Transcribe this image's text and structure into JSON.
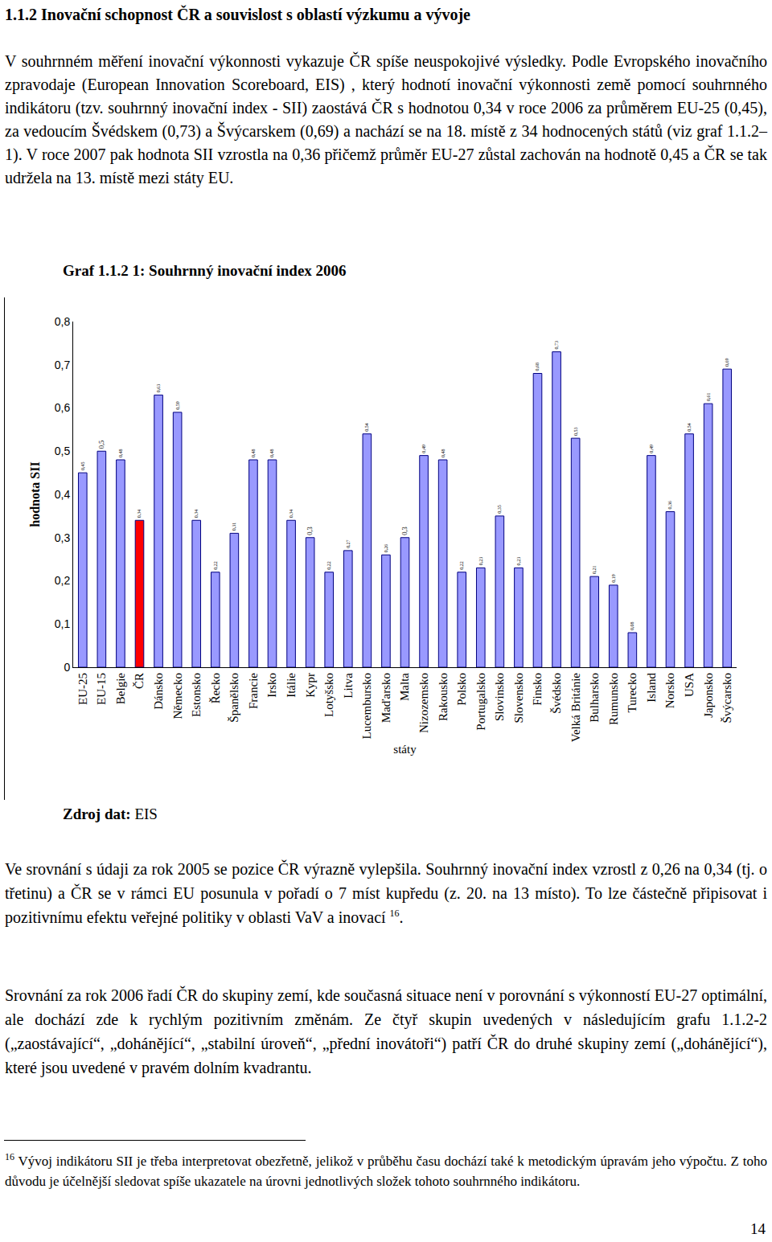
{
  "document": {
    "heading": "1.1.2 Inovační schopnost ČR a souvislost s oblastí výzkumu a vývoje",
    "paragraph_1": "V souhrnném měření inovační výkonnosti vykazuje ČR spíše neuspokojivé výsledky. Podle Evropského inovačního zpravodaje (European Innovation Scoreboard, EIS) , který hodnotí inovační výkonnosti země pomocí souhrnného indikátoru (tzv. souhrnný inovační index - SII) zaostává ČR s hodnotou 0,34 v roce 2006 za průměrem EU-25 (0,45), za vedoucím Švédskem (0,73) a Švýcarskem (0,69) a nachází se na 18. místě z 34 hodnocených států (viz graf 1.1.2– 1). V roce 2007 pak hodnota SII vzrostla na 0,36 přičemž průměr EU-27 zůstal zachován na hodnotě 0,45 a ČR se tak udržela na 13. místě mezi státy EU.",
    "source": {
      "label": "Zdroj dat:",
      "text": "EIS"
    },
    "paragraph_2": {
      "text": "Ve srovnání s údaji za rok 2005 se pozice ČR výrazně vylepšila. Souhrnný inovační index vzrostl z 0,26 na 0,34 (tj. o třetinu) a ČR se v rámci EU posunula v pořadí o 7 míst kupředu (z. 20. na 13 místo). To lze částečně připisovat i pozitivnímu efektu veřejné politiky v oblasti VaV a inovací",
      "footnote_ref": "16",
      "after": "."
    },
    "paragraph_3": "Srovnání za rok 2006 řadí ČR do skupiny zemí, kde současná situace není v porovnání s výkonností EU-27 optimální, ale dochází zde k rychlým pozitivním změnám. Ze čtyř skupin uvedených v následujícím grafu 1.1.2-2 („zaostávající“, „dohánějící“, „stabilní úroveň“, „přední inovátoři“) patří ČR do druhé skupiny zemí („dohánějící“), které jsou uvedené v pravém dolním kvadrantu.",
    "footnote": {
      "number": "16",
      "text": "Vývoj indikátoru SII je třeba interpretovat obezřetně, jelikož v průběhu času dochází také k metodickým úpravám jeho výpočtu. Z toho důvodu je účelnější sledovat spíše ukazatele na úrovni jednotlivých složek tohoto souhrnného indikátoru."
    },
    "page_number": "14"
  },
  "chart_data": {
    "type": "bar",
    "title": "Graf 1.1.2 1: Souhrnný inovační index 2006",
    "x_label": "státy",
    "y_label": "hodnota SII",
    "categories": [
      "EU-25",
      "EU-15",
      "Belgie",
      "ČR",
      "Dánsko",
      "Německo",
      "Estonsko",
      "Řecko",
      "Španělsko",
      "Francie",
      "Irsko",
      "Itálie",
      "Kypr",
      "Lotyšsko",
      "Litva",
      "Lucembursko",
      "Maďarsko",
      "Malta",
      "Nizozemsko",
      "Rakousko",
      "Polsko",
      "Portugalsko",
      "Slovinsko",
      "Slovensko",
      "Finsko",
      "Švédsko",
      "Velká Británie",
      "Bulharsko",
      "Rumunsko",
      "Turecko",
      "Island",
      "Norsko",
      "USA",
      "Japonsko",
      "Švýcarsko"
    ],
    "values": [
      0.45,
      0.5,
      0.48,
      0.34,
      0.63,
      0.59,
      0.34,
      0.22,
      0.31,
      0.48,
      0.48,
      0.34,
      0.3,
      0.22,
      0.27,
      0.54,
      0.26,
      0.3,
      0.49,
      0.48,
      0.22,
      0.23,
      0.35,
      0.23,
      0.68,
      0.73,
      0.53,
      0.21,
      0.19,
      0.08,
      0.49,
      0.36,
      0.54,
      0.61,
      0.69
    ],
    "value_labels": [
      "0,45",
      "0,5",
      "0,48",
      "0,34",
      "0,63",
      "0,59",
      "0,34",
      "0,22",
      "0,31",
      "0,48",
      "0,48",
      "0,34",
      "0,3",
      "0,22",
      "0,27",
      "0,54",
      "0,26",
      "0,3",
      "0,49",
      "0,48",
      "0,22",
      "0,23",
      "0,35",
      "0,23",
      "0,68",
      "0,73",
      "0,53",
      "0,21",
      "0,19",
      "0,08",
      "0,49",
      "0,36",
      "0,54",
      "0,61",
      "0,69"
    ],
    "colors": [
      "#9999ff",
      "#9999ff",
      "#9999ff",
      "#ff0000",
      "#9999ff",
      "#9999ff",
      "#9999ff",
      "#9999ff",
      "#9999ff",
      "#9999ff",
      "#9999ff",
      "#9999ff",
      "#9999ff",
      "#9999ff",
      "#9999ff",
      "#9999ff",
      "#9999ff",
      "#9999ff",
      "#9999ff",
      "#9999ff",
      "#9999ff",
      "#9999ff",
      "#9999ff",
      "#9999ff",
      "#9999ff",
      "#9999ff",
      "#9999ff",
      "#9999ff",
      "#9999ff",
      "#9999ff",
      "#9999ff",
      "#9999ff",
      "#9999ff",
      "#9999ff",
      "#9999ff"
    ],
    "ylim": [
      0,
      0.8
    ],
    "yticks": [
      0,
      {
        "value": 0.1,
        "label": "0,1"
      },
      {
        "value": 0.2,
        "label": "0,2"
      },
      {
        "value": 0.3,
        "label": "0,3"
      },
      {
        "value": 0.4,
        "label": "0,4"
      },
      {
        "value": 0.5,
        "label": "0,5"
      },
      {
        "value": 0.6,
        "label": "0,6"
      },
      {
        "value": 0.7,
        "label": "0,7"
      },
      {
        "value": 0.8,
        "label": "0,8"
      }
    ],
    "data_labels": true,
    "grid": false
  }
}
